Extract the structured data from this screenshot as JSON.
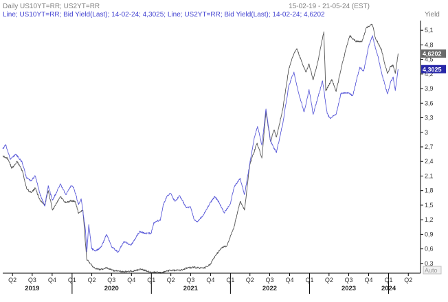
{
  "header": {
    "title": "Daily US10YT=RR; US2YT=RR",
    "date_range": "15-02-19 - 21-05-24 (EST)",
    "unit_label": "Yield",
    "legend_text": "Line; US10YT=RR; Bid Yield(Last); 14-02-24; 4,3025; Line; US2YT=RR; Bid Yield(Last); 14-02-24; 4,6202"
  },
  "footer": {
    "auto_label": "Auto"
  },
  "colors": {
    "us10": "#5b5bd9",
    "us2": "#555555",
    "axis": "#000000",
    "tag_blue": "#2828a8",
    "tag_gray": "#6a6a6a"
  },
  "chart_data": {
    "type": "line",
    "x_unit": "date",
    "ylim": [
      0.1,
      5.3
    ],
    "y_ticks": [
      {
        "v": 0.3,
        "label": "0,3"
      },
      {
        "v": 0.6,
        "label": "0,6"
      },
      {
        "v": 0.9,
        "label": "0,9"
      },
      {
        "v": 1.2,
        "label": "1,2"
      },
      {
        "v": 1.5,
        "label": "1,5"
      },
      {
        "v": 1.8,
        "label": "1,8"
      },
      {
        "v": 2.1,
        "label": "2,1"
      },
      {
        "v": 2.4,
        "label": "2,4"
      },
      {
        "v": 2.7,
        "label": "2,7"
      },
      {
        "v": 3.0,
        "label": "3"
      },
      {
        "v": 3.3,
        "label": "3,3"
      },
      {
        "v": 3.6,
        "label": "3,6"
      },
      {
        "v": 3.9,
        "label": "3,9"
      },
      {
        "v": 4.2,
        "label": "4,2"
      },
      {
        "v": 4.5,
        "label": "4,5"
      },
      {
        "v": 4.8,
        "label": "4,8"
      },
      {
        "v": 5.1,
        "label": "5,1"
      }
    ],
    "x_range": [
      "2019-02-15",
      "2024-05-21"
    ],
    "quarter_ticks": [
      {
        "date": "2019-04-01",
        "label": "Q2"
      },
      {
        "date": "2019-07-01",
        "label": "Q3"
      },
      {
        "date": "2019-10-01",
        "label": "Q4"
      },
      {
        "date": "2020-01-01",
        "label": "Q1"
      },
      {
        "date": "2020-04-01",
        "label": "Q2"
      },
      {
        "date": "2020-07-01",
        "label": "Q3"
      },
      {
        "date": "2020-10-01",
        "label": "Q4"
      },
      {
        "date": "2021-01-01",
        "label": "Q1"
      },
      {
        "date": "2021-04-01",
        "label": "Q2"
      },
      {
        "date": "2021-07-01",
        "label": "Q3"
      },
      {
        "date": "2021-10-01",
        "label": "Q4"
      },
      {
        "date": "2022-01-01",
        "label": "Q1"
      },
      {
        "date": "2022-04-01",
        "label": "Q2"
      },
      {
        "date": "2022-07-01",
        "label": "Q3"
      },
      {
        "date": "2022-10-01",
        "label": "Q4"
      },
      {
        "date": "2023-01-01",
        "label": "Q1"
      },
      {
        "date": "2023-04-01",
        "label": "Q2"
      },
      {
        "date": "2023-07-01",
        "label": "Q3"
      },
      {
        "date": "2023-10-01",
        "label": "Q4"
      },
      {
        "date": "2024-01-01",
        "label": "Q1"
      },
      {
        "date": "2024-04-01",
        "label": "Q2"
      }
    ],
    "year_labels": [
      {
        "date": "2019-07-01",
        "label": "2019"
      },
      {
        "date": "2020-07-01",
        "label": "2020"
      },
      {
        "date": "2021-07-01",
        "label": "2021"
      },
      {
        "date": "2022-07-01",
        "label": "2022"
      },
      {
        "date": "2023-07-01",
        "label": "2023"
      },
      {
        "date": "2024-01-01",
        "label": "2024"
      }
    ],
    "last_values": [
      {
        "label": "4,6202",
        "value": 4.62,
        "series": "US2YT=RR"
      },
      {
        "label": "4,3025",
        "value": 4.3,
        "series": "US10YT=RR"
      }
    ],
    "series": [
      {
        "name": "US10YT=RR",
        "color": "#5b5bd9",
        "points": [
          [
            "2019-02-15",
            2.66
          ],
          [
            "2019-03-01",
            2.75
          ],
          [
            "2019-03-22",
            2.44
          ],
          [
            "2019-04-15",
            2.55
          ],
          [
            "2019-05-15",
            2.39
          ],
          [
            "2019-06-03",
            2.08
          ],
          [
            "2019-06-25",
            2.0
          ],
          [
            "2019-07-15",
            2.1
          ],
          [
            "2019-08-05",
            1.75
          ],
          [
            "2019-08-28",
            1.48
          ],
          [
            "2019-09-13",
            1.9
          ],
          [
            "2019-10-02",
            1.6
          ],
          [
            "2019-10-25",
            1.8
          ],
          [
            "2019-11-08",
            1.94
          ],
          [
            "2019-12-03",
            1.72
          ],
          [
            "2019-12-27",
            1.9
          ],
          [
            "2020-01-08",
            1.87
          ],
          [
            "2020-01-31",
            1.51
          ],
          [
            "2020-02-12",
            1.63
          ],
          [
            "2020-03-03",
            0.98
          ],
          [
            "2020-03-09",
            0.54
          ],
          [
            "2020-03-18",
            1.1
          ],
          [
            "2020-04-01",
            0.6
          ],
          [
            "2020-04-21",
            0.56
          ],
          [
            "2020-05-15",
            0.64
          ],
          [
            "2020-06-08",
            0.9
          ],
          [
            "2020-06-30",
            0.66
          ],
          [
            "2020-07-31",
            0.53
          ],
          [
            "2020-08-27",
            0.75
          ],
          [
            "2020-09-30",
            0.68
          ],
          [
            "2020-10-23",
            0.85
          ],
          [
            "2020-11-09",
            0.96
          ],
          [
            "2020-12-01",
            0.92
          ],
          [
            "2020-12-31",
            0.92
          ],
          [
            "2021-01-12",
            1.14
          ],
          [
            "2021-02-12",
            1.2
          ],
          [
            "2021-02-25",
            1.52
          ],
          [
            "2021-03-18",
            1.71
          ],
          [
            "2021-03-31",
            1.74
          ],
          [
            "2021-04-20",
            1.58
          ],
          [
            "2021-05-12",
            1.69
          ],
          [
            "2021-06-11",
            1.45
          ],
          [
            "2021-06-30",
            1.47
          ],
          [
            "2021-07-19",
            1.19
          ],
          [
            "2021-08-04",
            1.17
          ],
          [
            "2021-08-31",
            1.31
          ],
          [
            "2021-09-28",
            1.54
          ],
          [
            "2021-10-21",
            1.68
          ],
          [
            "2021-11-10",
            1.55
          ],
          [
            "2021-12-03",
            1.34
          ],
          [
            "2021-12-31",
            1.52
          ],
          [
            "2022-01-18",
            1.87
          ],
          [
            "2022-02-15",
            2.05
          ],
          [
            "2022-03-07",
            1.72
          ],
          [
            "2022-03-31",
            2.34
          ],
          [
            "2022-04-22",
            2.9
          ],
          [
            "2022-05-06",
            3.12
          ],
          [
            "2022-05-26",
            2.74
          ],
          [
            "2022-06-14",
            3.48
          ],
          [
            "2022-07-05",
            2.82
          ],
          [
            "2022-08-01",
            2.58
          ],
          [
            "2022-08-31",
            3.19
          ],
          [
            "2022-09-27",
            3.95
          ],
          [
            "2022-10-21",
            4.24
          ],
          [
            "2022-11-11",
            3.82
          ],
          [
            "2022-12-07",
            3.42
          ],
          [
            "2022-12-30",
            3.88
          ],
          [
            "2023-01-18",
            3.37
          ],
          [
            "2023-03-02",
            4.06
          ],
          [
            "2023-03-24",
            3.38
          ],
          [
            "2023-04-06",
            3.29
          ],
          [
            "2023-05-04",
            3.37
          ],
          [
            "2023-05-26",
            3.8
          ],
          [
            "2023-06-30",
            3.81
          ],
          [
            "2023-07-19",
            3.75
          ],
          [
            "2023-08-21",
            4.34
          ],
          [
            "2023-09-08",
            4.26
          ],
          [
            "2023-10-03",
            4.81
          ],
          [
            "2023-10-19",
            4.99
          ],
          [
            "2023-11-01",
            4.73
          ],
          [
            "2023-11-15",
            4.53
          ],
          [
            "2023-12-01",
            4.2
          ],
          [
            "2023-12-27",
            3.79
          ],
          [
            "2024-01-09",
            4.02
          ],
          [
            "2024-01-22",
            4.14
          ],
          [
            "2024-02-01",
            3.86
          ],
          [
            "2024-02-14",
            4.3
          ]
        ]
      },
      {
        "name": "US2YT=RR",
        "color": "#555555",
        "points": [
          [
            "2019-02-15",
            2.51
          ],
          [
            "2019-03-08",
            2.47
          ],
          [
            "2019-03-29",
            2.26
          ],
          [
            "2019-04-22",
            2.4
          ],
          [
            "2019-05-17",
            2.2
          ],
          [
            "2019-06-05",
            1.84
          ],
          [
            "2019-06-25",
            1.76
          ],
          [
            "2019-07-15",
            1.85
          ],
          [
            "2019-08-06",
            1.6
          ],
          [
            "2019-08-28",
            1.5
          ],
          [
            "2019-09-13",
            1.8
          ],
          [
            "2019-10-03",
            1.4
          ],
          [
            "2019-11-08",
            1.67
          ],
          [
            "2019-12-03",
            1.55
          ],
          [
            "2019-12-27",
            1.59
          ],
          [
            "2020-01-15",
            1.58
          ],
          [
            "2020-01-31",
            1.33
          ],
          [
            "2020-02-20",
            1.4
          ],
          [
            "2020-03-03",
            0.7
          ],
          [
            "2020-03-09",
            0.38
          ],
          [
            "2020-03-23",
            0.3
          ],
          [
            "2020-04-15",
            0.2
          ],
          [
            "2020-05-11",
            0.17
          ],
          [
            "2020-06-08",
            0.22
          ],
          [
            "2020-07-15",
            0.15
          ],
          [
            "2020-08-31",
            0.13
          ],
          [
            "2020-10-15",
            0.15
          ],
          [
            "2020-11-15",
            0.18
          ],
          [
            "2020-12-31",
            0.12
          ],
          [
            "2021-02-15",
            0.11
          ],
          [
            "2021-03-31",
            0.16
          ],
          [
            "2021-05-15",
            0.16
          ],
          [
            "2021-06-16",
            0.21
          ],
          [
            "2021-07-15",
            0.22
          ],
          [
            "2021-08-31",
            0.2
          ],
          [
            "2021-09-30",
            0.28
          ],
          [
            "2021-10-21",
            0.45
          ],
          [
            "2021-11-24",
            0.64
          ],
          [
            "2021-12-15",
            0.66
          ],
          [
            "2022-01-18",
            1.06
          ],
          [
            "2022-02-15",
            1.58
          ],
          [
            "2022-03-07",
            1.4
          ],
          [
            "2022-03-31",
            2.33
          ],
          [
            "2022-05-04",
            2.78
          ],
          [
            "2022-05-26",
            2.47
          ],
          [
            "2022-06-14",
            3.43
          ],
          [
            "2022-07-05",
            2.81
          ],
          [
            "2022-07-22",
            3.05
          ],
          [
            "2022-08-01",
            2.9
          ],
          [
            "2022-08-31",
            3.49
          ],
          [
            "2022-09-27",
            4.3
          ],
          [
            "2022-10-21",
            4.62
          ],
          [
            "2022-11-04",
            4.72
          ],
          [
            "2022-11-25",
            4.46
          ],
          [
            "2022-12-15",
            4.24
          ],
          [
            "2022-12-30",
            4.41
          ],
          [
            "2023-01-18",
            4.08
          ],
          [
            "2023-02-08",
            4.45
          ],
          [
            "2023-03-08",
            5.07
          ],
          [
            "2023-03-17",
            3.85
          ],
          [
            "2023-04-14",
            4.09
          ],
          [
            "2023-05-04",
            3.84
          ],
          [
            "2023-05-31",
            4.4
          ],
          [
            "2023-06-30",
            4.9
          ],
          [
            "2023-07-06",
            4.99
          ],
          [
            "2023-07-31",
            4.88
          ],
          [
            "2023-08-31",
            4.86
          ],
          [
            "2023-09-20",
            5.15
          ],
          [
            "2023-10-18",
            5.22
          ],
          [
            "2023-11-01",
            4.95
          ],
          [
            "2023-11-30",
            4.69
          ],
          [
            "2023-12-13",
            4.43
          ],
          [
            "2023-12-27",
            4.21
          ],
          [
            "2024-01-10",
            4.36
          ],
          [
            "2024-01-22",
            4.38
          ],
          [
            "2024-02-01",
            4.21
          ],
          [
            "2024-02-14",
            4.62
          ]
        ]
      }
    ]
  }
}
